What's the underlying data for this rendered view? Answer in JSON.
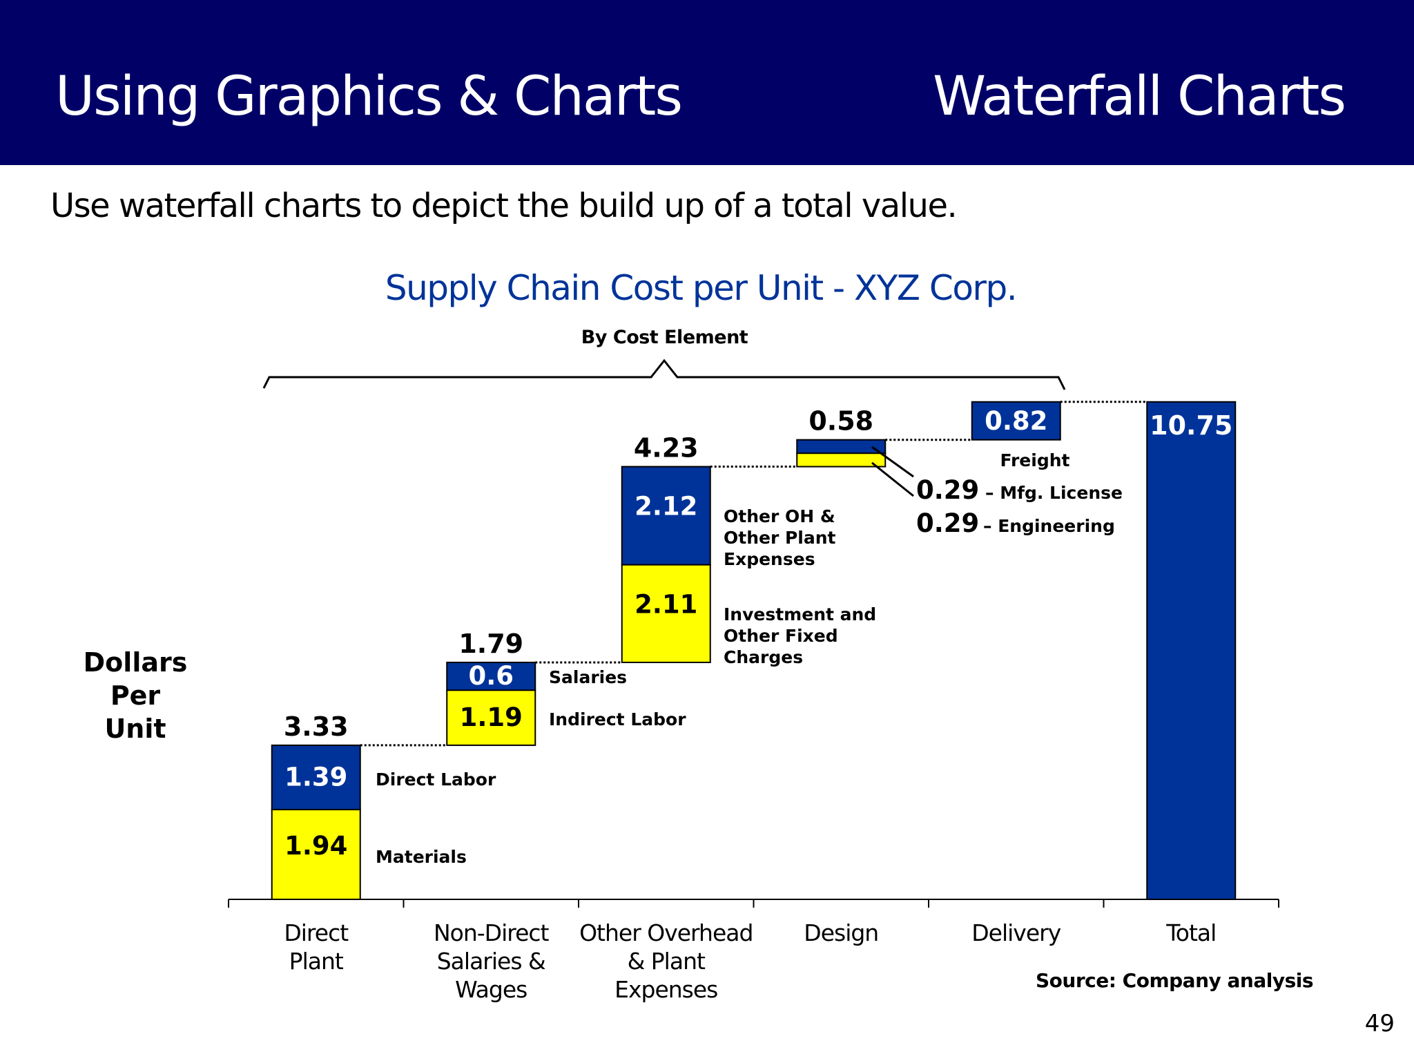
{
  "header": {
    "left_title": "Using Graphics & Charts",
    "right_title": "Waterfall Charts",
    "background": "#000066"
  },
  "lead_text": "Use waterfall charts to depict the build up of a total value.",
  "page_number": "49",
  "source": "Source: Company analysis",
  "colors": {
    "primary_blue": "#003399",
    "highlight_yellow": "#FFFF00"
  },
  "chart_data": {
    "type": "bar",
    "subtype": "waterfall",
    "title": "Supply Chain Cost per Unit - XYZ Corp.",
    "subtitle": "By Cost Element",
    "ylabel": "Dollars Per Unit",
    "xlabel": "",
    "grid": false,
    "categories": [
      [
        "Direct",
        "Plant"
      ],
      [
        "Non-Direct",
        "Salaries &",
        "Wages"
      ],
      [
        "Other Overhead",
        "& Plant",
        "Expenses"
      ],
      [
        "Design"
      ],
      [
        "Delivery"
      ],
      [
        "Total"
      ]
    ],
    "steps": [
      {
        "total_label": "3.33",
        "segments": [
          {
            "name": "Materials",
            "value": 1.94,
            "color": "#FFFF00",
            "label": "1.94"
          },
          {
            "name": "Direct Labor",
            "value": 1.39,
            "color": "#003399",
            "label": "1.39"
          }
        ]
      },
      {
        "total_label": "1.79",
        "segments": [
          {
            "name": "Indirect Labor",
            "value": 1.19,
            "color": "#FFFF00",
            "label": "1.19"
          },
          {
            "name": "Salaries",
            "value": 0.6,
            "color": "#003399",
            "label": "0.6"
          }
        ]
      },
      {
        "total_label": "4.23",
        "segments": [
          {
            "name": "Investment and Other Fixed Charges",
            "value": 2.11,
            "color": "#FFFF00",
            "label": "2.11",
            "note_lines": [
              "Investment and",
              "Other Fixed",
              "Charges"
            ]
          },
          {
            "name": "Other OH & Other Plant Expenses",
            "value": 2.12,
            "color": "#003399",
            "label": "2.12",
            "note_lines": [
              "Other OH &",
              "Other Plant",
              "Expenses"
            ]
          }
        ]
      },
      {
        "total_label": "0.58",
        "segments": [
          {
            "name": "Engineering",
            "value": 0.29,
            "color": "#FFFF00",
            "label": "0.29",
            "callout": "– Engineering"
          },
          {
            "name": "Mfg. License",
            "value": 0.29,
            "color": "#003399",
            "label": "0.29",
            "callout": "– Mfg. License"
          }
        ]
      },
      {
        "total_label": "0.82",
        "segments": [
          {
            "name": "Freight",
            "value": 0.82,
            "color": "#003399",
            "label": "0.82"
          }
        ]
      }
    ],
    "total": {
      "value": 10.75,
      "label": "10.75",
      "color": "#003399"
    },
    "segment_notes": {
      "direct_labor": "Direct Labor",
      "materials": "Materials",
      "salaries": "Salaries",
      "indirect_labor": "Indirect Labor",
      "freight": "Freight"
    },
    "ylim": [
      0,
      10.75
    ]
  }
}
